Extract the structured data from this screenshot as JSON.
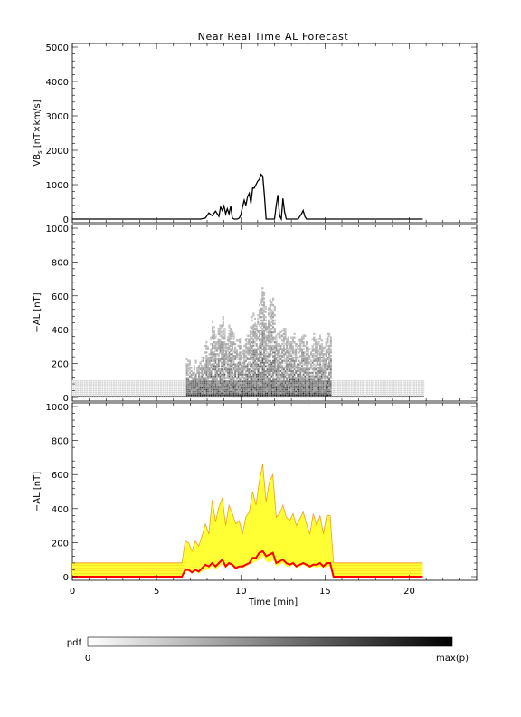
{
  "title": "Near Real Time AL Forecast",
  "xlabel": "Time [min]",
  "colorbar": {
    "label": "pdf",
    "min_label": "0",
    "max_label": "max(p)"
  },
  "chart_data": [
    {
      "type": "line",
      "ylabel_main": "VB",
      "ylabel_sub": "s",
      "ylabel_rest": " [nT×km/s]",
      "xlim": [
        0,
        24
      ],
      "ylim": [
        0,
        5000
      ],
      "xticks": [
        0,
        5,
        10,
        15,
        20
      ],
      "yticks": [
        0,
        1000,
        2000,
        3000,
        4000,
        5000
      ],
      "line_color": "#000000",
      "series": [
        {
          "x": [
            0,
            6.7,
            7.0,
            7.3,
            7.6,
            7.9,
            8.1,
            8.3,
            8.5,
            8.7,
            8.8,
            8.9,
            9.0,
            9.1,
            9.2,
            9.3,
            9.4,
            9.5,
            9.6,
            9.7,
            9.8,
            9.9,
            10.0,
            10.1,
            10.2,
            10.3,
            10.4,
            10.5,
            10.6,
            10.7,
            10.8,
            10.9,
            11.0,
            11.1,
            11.2,
            11.3,
            11.4,
            11.5,
            11.6,
            11.7,
            11.8,
            11.9,
            12.0,
            12.1,
            12.2,
            12.3,
            12.4,
            12.5,
            12.6,
            12.7,
            12.8,
            12.9,
            13.0,
            13.2,
            13.4,
            13.6,
            13.7,
            13.8,
            13.9,
            14.0,
            14.1,
            14.3,
            15.0,
            20.8
          ],
          "y": [
            0,
            0,
            0,
            0,
            0,
            30,
            180,
            100,
            230,
            80,
            350,
            250,
            380,
            150,
            300,
            150,
            380,
            30,
            0,
            0,
            0,
            30,
            120,
            350,
            550,
            400,
            650,
            750,
            450,
            900,
            900,
            1000,
            1100,
            1150,
            1300,
            1250,
            700,
            0,
            0,
            0,
            0,
            0,
            0,
            400,
            700,
            100,
            0,
            600,
            200,
            0,
            0,
            0,
            0,
            0,
            0,
            150,
            250,
            80,
            0,
            0,
            0,
            0,
            0,
            0
          ]
        }
      ]
    },
    {
      "type": "heatmap",
      "ylabel": "−AL [nT]",
      "xlim": [
        0,
        24
      ],
      "ylim": [
        0,
        1000
      ],
      "yticks": [
        0,
        200,
        400,
        600,
        800,
        1000
      ],
      "active_range": [
        6.7,
        15.3
      ],
      "data_range": [
        0,
        20.8
      ],
      "quiet_band": [
        0,
        100
      ],
      "intensity_colors": [
        "#ffffff",
        "#000000"
      ]
    },
    {
      "type": "area",
      "ylabel": "−AL [nT]",
      "xlim": [
        0,
        24
      ],
      "ylim": [
        0,
        1000
      ],
      "yticks": [
        0,
        200,
        400,
        600,
        800,
        1000
      ],
      "fill_color": "#ffff33",
      "envelope_color": "#f0a020",
      "median_color": "#ff0000",
      "x": [
        0,
        6.5,
        6.7,
        6.9,
        7.1,
        7.3,
        7.5,
        7.7,
        7.9,
        8.1,
        8.3,
        8.5,
        8.7,
        8.9,
        9.1,
        9.3,
        9.5,
        9.7,
        9.9,
        10.1,
        10.3,
        10.5,
        10.7,
        10.9,
        11.1,
        11.3,
        11.5,
        11.7,
        11.9,
        12.1,
        12.3,
        12.5,
        12.7,
        12.9,
        13.1,
        13.3,
        13.5,
        13.7,
        13.9,
        14.1,
        14.3,
        14.5,
        14.7,
        14.9,
        15.1,
        15.3,
        15.5,
        20.8
      ],
      "upper": [
        80,
        80,
        210,
        200,
        150,
        210,
        180,
        240,
        310,
        250,
        450,
        320,
        410,
        460,
        300,
        420,
        370,
        310,
        330,
        250,
        350,
        380,
        500,
        420,
        560,
        660,
        440,
        560,
        600,
        350,
        370,
        420,
        350,
        330,
        370,
        300,
        340,
        380,
        310,
        250,
        370,
        300,
        360,
        250,
        360,
        360,
        80,
        80
      ],
      "lower": [
        0,
        0,
        30,
        30,
        20,
        30,
        20,
        30,
        40,
        40,
        60,
        40,
        60,
        70,
        50,
        70,
        60,
        40,
        60,
        50,
        60,
        70,
        80,
        90,
        100,
        120,
        90,
        80,
        100,
        60,
        70,
        80,
        60,
        60,
        70,
        50,
        60,
        70,
        60,
        50,
        60,
        50,
        60,
        50,
        60,
        60,
        0,
        0
      ],
      "median": [
        0,
        0,
        40,
        40,
        25,
        40,
        30,
        50,
        70,
        60,
        80,
        60,
        80,
        100,
        60,
        80,
        70,
        50,
        60,
        60,
        70,
        80,
        110,
        110,
        140,
        150,
        120,
        130,
        140,
        80,
        90,
        100,
        80,
        70,
        80,
        60,
        70,
        80,
        70,
        60,
        70,
        70,
        80,
        60,
        80,
        80,
        0,
        0
      ]
    }
  ]
}
